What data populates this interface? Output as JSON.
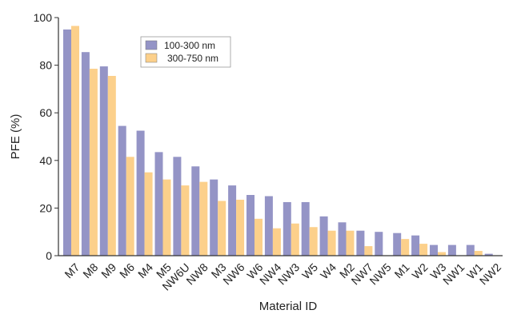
{
  "chart_data": {
    "type": "bar",
    "xlabel": "Material ID",
    "ylabel": "PFE (%)",
    "ylim": [
      0,
      100
    ],
    "yticks": [
      0,
      20,
      40,
      60,
      80,
      100
    ],
    "grid": false,
    "legend_position": "top-left",
    "categories": [
      "M7",
      "M8",
      "M9",
      "M6",
      "M4",
      "M5",
      "NW6U",
      "NW8",
      "M3",
      "NW6",
      "W6",
      "NW4",
      "NW3",
      "W5",
      "W4",
      "M2",
      "NW7",
      "NW5",
      "M1",
      "W2",
      "W3",
      "NW1",
      "W1",
      "NW2"
    ],
    "series": [
      {
        "name": "100-300 nm",
        "color": "#9494c6",
        "values": [
          95,
          85.5,
          79.5,
          54.5,
          52.5,
          43.5,
          41.5,
          37.5,
          32,
          29.5,
          25.5,
          25,
          22.5,
          22.5,
          16.5,
          14,
          10.5,
          10,
          9.5,
          8.5,
          4.5,
          4.5,
          4.5,
          0.8
        ]
      },
      {
        "name": "300-750 nm",
        "color": "#fcd08b",
        "values": [
          96.5,
          78.5,
          75.5,
          41.5,
          35,
          32,
          29.5,
          31,
          23,
          23.5,
          15.5,
          11.5,
          13.5,
          12,
          10.5,
          10.5,
          4,
          0,
          7,
          5,
          1.5,
          0,
          2,
          0
        ]
      }
    ]
  }
}
